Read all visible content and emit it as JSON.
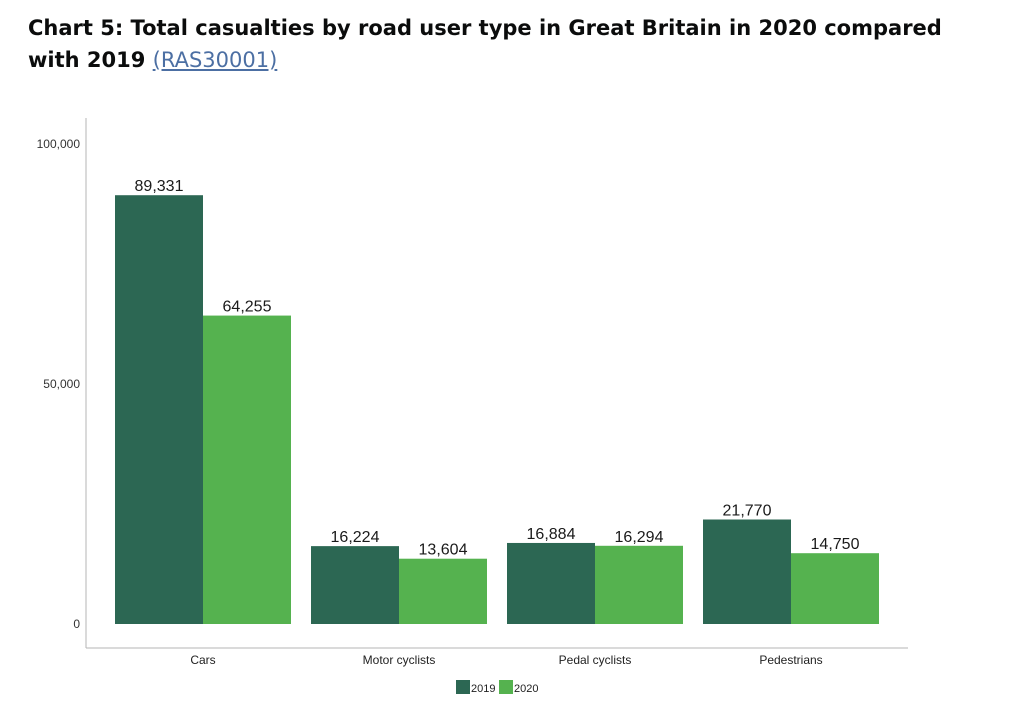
{
  "page": {
    "title_text": "Chart 5: Total casualties by road user type in Great Britain in 2020 compared with 2019",
    "title_link": "(RAS30001)"
  },
  "colors": {
    "series_2019": "#2c6753",
    "series_2020": "#55b24f",
    "axis": "#b5b5b5"
  },
  "chart_data": {
    "type": "bar",
    "title": "Chart 5: Total casualties by road user type in Great Britain in 2020 compared with 2019",
    "categories": [
      "Cars",
      "Motor cyclists",
      "Pedal cyclists",
      "Pedestrians"
    ],
    "series": [
      {
        "name": "2019",
        "values": [
          89331,
          16224,
          16884,
          21770
        ],
        "labels": [
          "89,331",
          "16,224",
          "16,884",
          "21,770"
        ]
      },
      {
        "name": "2020",
        "values": [
          64255,
          13604,
          16294,
          14750
        ],
        "labels": [
          "64,255",
          "13,604",
          "16,294",
          "14,750"
        ]
      }
    ],
    "ylim": [
      0,
      105000
    ],
    "yticks": [
      0,
      50000,
      100000
    ],
    "ytick_labels": [
      "0",
      "50,000",
      "100,000"
    ],
    "xlabel": "",
    "ylabel": "",
    "grid": false,
    "legend": "bottom-center"
  }
}
